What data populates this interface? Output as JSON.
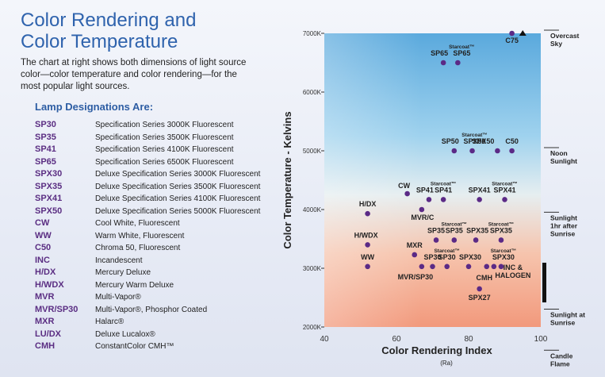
{
  "header": {
    "title_line1": "Color Rendering and",
    "title_line2": "Color Temperature",
    "intro": "The chart at right shows both dimensions of light source color—color temperature and color rendering—for the most popular light sources."
  },
  "legend": {
    "heading": "Lamp Designations Are:",
    "items": [
      {
        "code": "SP30",
        "desc": "Specification Series 3000K Fluorescent"
      },
      {
        "code": "SP35",
        "desc": "Specification Series 3500K Fluorescent"
      },
      {
        "code": "SP41",
        "desc": "Specification Series 4100K Fluorescent"
      },
      {
        "code": "SP65",
        "desc": "Specification Series 6500K Fluorescent"
      },
      {
        "code": "SPX30",
        "desc": "Deluxe Specification Series 3000K Fluorescent"
      },
      {
        "code": "SPX35",
        "desc": "Deluxe Specification Series 3500K Fluorescent"
      },
      {
        "code": "SPX41",
        "desc": "Deluxe Specification Series 4100K Fluorescent"
      },
      {
        "code": "SPX50",
        "desc": "Deluxe Specification Series 5000K Fluorescent"
      },
      {
        "code": "CW",
        "desc": "Cool White, Fluorescent"
      },
      {
        "code": "WW",
        "desc": "Warm White, Fluorescent"
      },
      {
        "code": "C50",
        "desc": "Chroma 50, Fluorescent"
      },
      {
        "code": "INC",
        "desc": "Incandescent"
      },
      {
        "code": "H/DX",
        "desc": "Mercury Deluxe"
      },
      {
        "code": "H/WDX",
        "desc": "Mercury Warm Deluxe"
      },
      {
        "code": "MVR",
        "desc": "Multi-Vapor®"
      },
      {
        "code": "MVR/SP30",
        "desc": "Multi-Vapor®, Phosphor Coated"
      },
      {
        "code": "MXR",
        "desc": "Halarc®"
      },
      {
        "code": "LU/DX",
        "desc": "Deluxe Lucalox®"
      },
      {
        "code": "CMH",
        "desc": "ConstantColor CMH™"
      }
    ]
  },
  "chart_data": {
    "type": "scatter",
    "xlabel": "Color Rendering Index",
    "xlabel_sub": "(Ra)",
    "ylabel": "Color Temperature - Kelvins",
    "xlim": [
      40,
      100
    ],
    "ylim": [
      2000,
      7000
    ],
    "xticks": [
      "40",
      "60",
      "80",
      "100"
    ],
    "yticks": [
      "2000K",
      "3000K",
      "4000K",
      "5000K",
      "6000K",
      "7000K"
    ],
    "reference_labels": [
      {
        "y": 7000,
        "lines": [
          "Overcast",
          "Sky"
        ]
      },
      {
        "y": 5000,
        "lines": [
          "Noon",
          "Sunlight"
        ]
      },
      {
        "y": 3900,
        "lines": [
          "Sunlight",
          "1hr after",
          "Sunrise"
        ]
      },
      {
        "y": 2250,
        "lines": [
          "Sunlight at",
          "Sunrise"
        ]
      },
      {
        "y": 1550,
        "lines": [
          "Candle",
          "Flame"
        ]
      }
    ],
    "points": [
      {
        "x": 92,
        "y": 7000,
        "label": "C75"
      },
      {
        "x": 95,
        "y": 7000,
        "label": "",
        "marker": "triangle"
      },
      {
        "x": 73,
        "y": 6500,
        "label": "SP65"
      },
      {
        "x": 77,
        "y": 6500,
        "label": "Starcoat™ SP65"
      },
      {
        "x": 76,
        "y": 5000,
        "label": "SP50"
      },
      {
        "x": 81,
        "y": 5000,
        "label": "Starcoat™ SPX50"
      },
      {
        "x": 88,
        "y": 5000,
        "label": "SPX50"
      },
      {
        "x": 92,
        "y": 5000,
        "label": "C50"
      },
      {
        "x": 63,
        "y": 4270,
        "label": "CW"
      },
      {
        "x": 69,
        "y": 4170,
        "label": "SP41"
      },
      {
        "x": 73,
        "y": 4170,
        "label": "Starcoat™ SP41"
      },
      {
        "x": 83,
        "y": 4170,
        "label": "SPX41"
      },
      {
        "x": 90,
        "y": 4170,
        "label": "Starcoat™ SPX41"
      },
      {
        "x": 52,
        "y": 3930,
        "label": "H/DX"
      },
      {
        "x": 67,
        "y": 4000,
        "label": "MVR/C"
      },
      {
        "x": 71,
        "y": 3480,
        "label": "SP35"
      },
      {
        "x": 76,
        "y": 3480,
        "label": "Starcoat™ SP35"
      },
      {
        "x": 82,
        "y": 3480,
        "label": "SPX35"
      },
      {
        "x": 89,
        "y": 3480,
        "label": "Starcoat™ SPX35"
      },
      {
        "x": 52,
        "y": 3400,
        "label": "H/WDX"
      },
      {
        "x": 65,
        "y": 3230,
        "label": "MXR"
      },
      {
        "x": 52,
        "y": 3030,
        "label": "WW"
      },
      {
        "x": 67,
        "y": 3030,
        "label": "MVR/SP30"
      },
      {
        "x": 70,
        "y": 3030,
        "label": "SP30"
      },
      {
        "x": 74,
        "y": 3030,
        "label": "Starcoat™ SP30"
      },
      {
        "x": 80,
        "y": 3030,
        "label": "SPX30"
      },
      {
        "x": 85,
        "y": 3030,
        "label": "CMH"
      },
      {
        "x": 87,
        "y": 3030,
        "label": "INC & HALOGEN"
      },
      {
        "x": 89,
        "y": 3030,
        "label": "Starcoat™ SPX30"
      },
      {
        "x": 83,
        "y": 2650,
        "label": "SPX27"
      }
    ]
  }
}
